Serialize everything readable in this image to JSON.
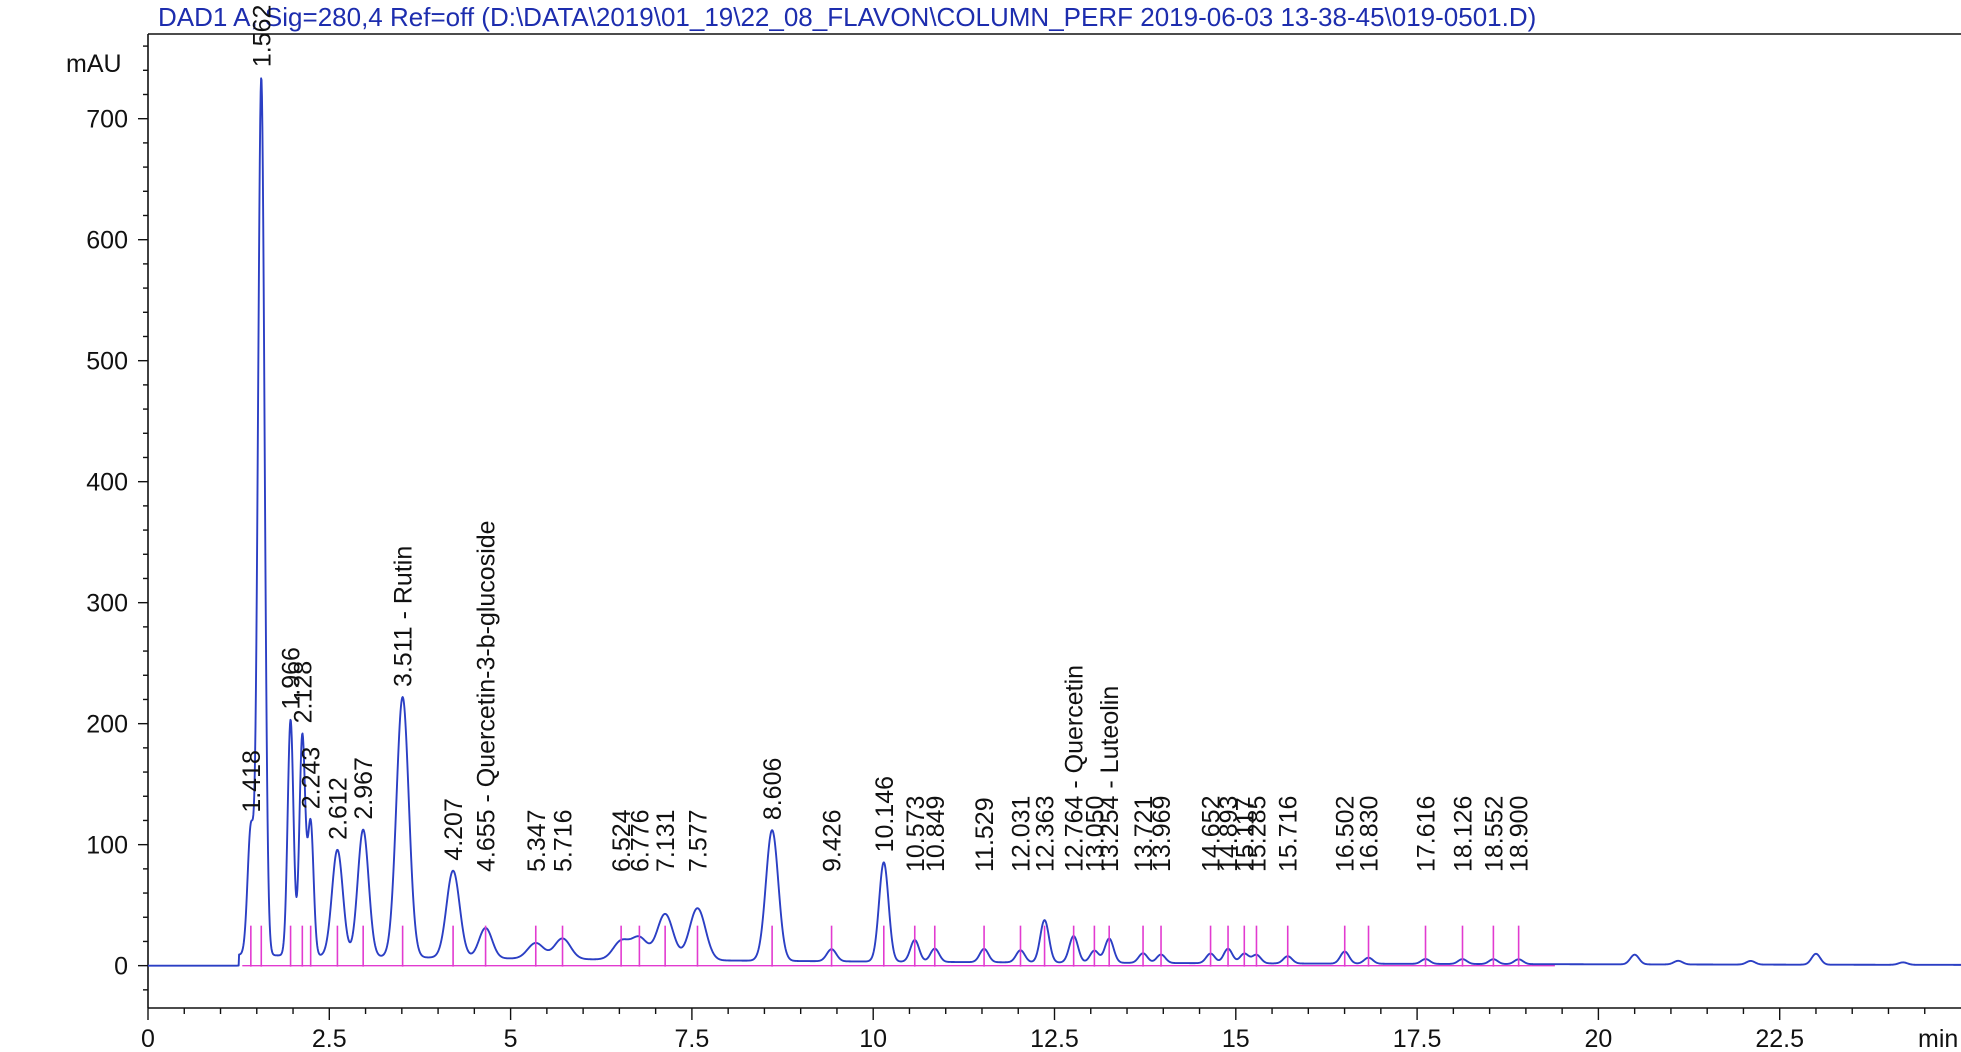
{
  "title": "DAD1 A, Sig=280,4 Ref=off (D:\\DATA\\2019\\01_19\\22_08_FLAVON\\COLUMN_PERF 2019-06-03 13-38-45\\019-0501.D)",
  "chart_data": {
    "type": "line",
    "title": "DAD1 A, Sig=280,4 Ref=off (D:\\DATA\\2019\\01_19\\22_08_FLAVON\\COLUMN_PERF 2019-06-03 13-38-45\\019-0501.D)",
    "ylabel": "mAU",
    "xlabel": "min",
    "xlim": [
      0,
      25
    ],
    "ylim": [
      -35,
      770
    ],
    "x_ticks": [
      {
        "value": 0,
        "label": "0"
      },
      {
        "value": 2.5,
        "label": "2.5"
      },
      {
        "value": 5,
        "label": "5"
      },
      {
        "value": 7.5,
        "label": "7.5"
      },
      {
        "value": 10,
        "label": "10"
      },
      {
        "value": 12.5,
        "label": "12.5"
      },
      {
        "value": 15,
        "label": "15"
      },
      {
        "value": 17.5,
        "label": "17.5"
      },
      {
        "value": 20,
        "label": "20"
      },
      {
        "value": 22.5,
        "label": "22.5"
      }
    ],
    "y_ticks": [
      {
        "value": 0,
        "label": "0"
      },
      {
        "value": 100,
        "label": "100"
      },
      {
        "value": 200,
        "label": "200"
      },
      {
        "value": 300,
        "label": "300"
      },
      {
        "value": 400,
        "label": "400"
      },
      {
        "value": 500,
        "label": "500"
      },
      {
        "value": 600,
        "label": "600"
      },
      {
        "value": 700,
        "label": "700"
      }
    ],
    "peaks": [
      {
        "rt": 1.418,
        "height": 105,
        "label": "1.418"
      },
      {
        "rt": 1.562,
        "height": 725,
        "label": "1.562"
      },
      {
        "rt": 1.966,
        "height": 195,
        "label": "1.966"
      },
      {
        "rt": 2.128,
        "height": 182,
        "label": "2.128"
      },
      {
        "rt": 2.243,
        "height": 110,
        "label": "2.243"
      },
      {
        "rt": 2.612,
        "height": 88,
        "label": "2.612"
      },
      {
        "rt": 2.967,
        "height": 105,
        "label": "2.967"
      },
      {
        "rt": 3.511,
        "height": 215,
        "label": "3.511 -  Rutin"
      },
      {
        "rt": 4.207,
        "height": 72,
        "label": "4.207"
      },
      {
        "rt": 4.655,
        "height": 25,
        "label": "4.655 -  Quercetin-3-b-glucoside"
      },
      {
        "rt": 5.347,
        "height": 13,
        "label": "5.347"
      },
      {
        "rt": 5.716,
        "height": 17,
        "label": "5.716"
      },
      {
        "rt": 6.524,
        "height": 15,
        "label": "6.524"
      },
      {
        "rt": 6.776,
        "height": 18,
        "label": "6.776"
      },
      {
        "rt": 7.131,
        "height": 38,
        "label": "7.131"
      },
      {
        "rt": 7.577,
        "height": 43,
        "label": "7.577"
      },
      {
        "rt": 8.606,
        "height": 108,
        "label": "8.606"
      },
      {
        "rt": 9.426,
        "height": 10,
        "label": "9.426"
      },
      {
        "rt": 10.146,
        "height": 82,
        "label": "10.146"
      },
      {
        "rt": 10.573,
        "height": 18,
        "label": "10.573"
      },
      {
        "rt": 10.849,
        "height": 11,
        "label": "10.849"
      },
      {
        "rt": 11.529,
        "height": 11,
        "label": "11.529"
      },
      {
        "rt": 12.031,
        "height": 10,
        "label": "12.031"
      },
      {
        "rt": 12.363,
        "height": 35,
        "label": "12.363"
      },
      {
        "rt": 12.764,
        "height": 22,
        "label": "12.764 -  Quercetin"
      },
      {
        "rt": 13.05,
        "height": 10,
        "label": "13.050"
      },
      {
        "rt": 13.254,
        "height": 20,
        "label": "13.254 -  Luteolin"
      },
      {
        "rt": 13.721,
        "height": 8,
        "label": "13.721"
      },
      {
        "rt": 13.969,
        "height": 7,
        "label": "13.969"
      },
      {
        "rt": 14.652,
        "height": 8,
        "label": "14.652"
      },
      {
        "rt": 14.893,
        "height": 12,
        "label": "14.893"
      },
      {
        "rt": 15.117,
        "height": 8,
        "label": "15.117"
      },
      {
        "rt": 15.285,
        "height": 7,
        "label": "15.285"
      },
      {
        "rt": 15.716,
        "height": 6,
        "label": "15.716"
      },
      {
        "rt": 16.502,
        "height": 10,
        "label": "16.502"
      },
      {
        "rt": 16.83,
        "height": 5,
        "label": "16.830"
      },
      {
        "rt": 17.616,
        "height": 4,
        "label": "17.616"
      },
      {
        "rt": 18.126,
        "height": 4,
        "label": "18.126"
      },
      {
        "rt": 18.552,
        "height": 4,
        "label": "18.552"
      },
      {
        "rt": 18.9,
        "height": 4,
        "label": "18.900"
      }
    ],
    "unlabeled_bumps": [
      {
        "rt": 20.5,
        "height": 8
      },
      {
        "rt": 21.1,
        "height": 3
      },
      {
        "rt": 22.1,
        "height": 3
      },
      {
        "rt": 23.0,
        "height": 9
      },
      {
        "rt": 24.2,
        "height": 2
      }
    ],
    "grid": false,
    "colors": {
      "trace": "#2b3fc4",
      "baseline": "#e23bd0",
      "title": "#1d2dae",
      "axis": "#111111"
    }
  }
}
